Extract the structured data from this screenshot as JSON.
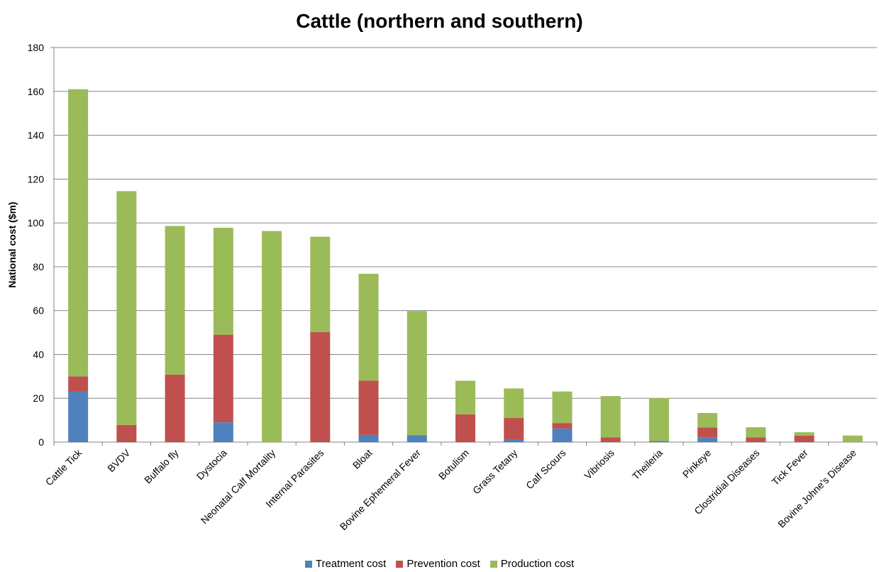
{
  "chart_data": {
    "type": "bar",
    "stacked": true,
    "title": "Cattle (northern and southern)",
    "xlabel": "",
    "ylabel": "National cost ($m)",
    "ylim": [
      0,
      180
    ],
    "yticks": [
      0,
      20,
      40,
      60,
      80,
      100,
      120,
      140,
      160,
      180
    ],
    "grid": true,
    "legend_position": "bottom",
    "categories": [
      "Cattle Tick",
      "BVDV",
      "Buffalo fly",
      "Dystocia",
      "Neonatal Calf Mortality",
      "Internal Parasites",
      "Bloat",
      "Bovine Ephemeral Fever",
      "Botulism",
      "Grass Tetany",
      "Calf Scours",
      "Vibriosis",
      "Theileria",
      "Pinkeye",
      "Clostridial Diseases",
      "Tick Fever",
      "Bovine Johne’s Disease"
    ],
    "series": [
      {
        "name": "Treatment cost",
        "color": "#4F81BD",
        "values": [
          23,
          0,
          0,
          9,
          0,
          0,
          3.3,
          3.2,
          0,
          1.3,
          6.2,
          0,
          0.5,
          2.2,
          0,
          0,
          0
        ]
      },
      {
        "name": "Prevention cost",
        "color": "#C0504D",
        "values": [
          7,
          7.8,
          30.8,
          40,
          0,
          50.2,
          24.7,
          0,
          12.7,
          9.7,
          2.5,
          2.2,
          0,
          4.5,
          2.2,
          3,
          0
        ]
      },
      {
        "name": "Production cost",
        "color": "#9BBB59",
        "values": [
          131,
          106.7,
          67.8,
          48.8,
          96.3,
          43.5,
          48.8,
          56.6,
          15.3,
          13.5,
          14.4,
          18.8,
          19.6,
          6.6,
          4.6,
          1.5,
          3
        ]
      }
    ]
  }
}
